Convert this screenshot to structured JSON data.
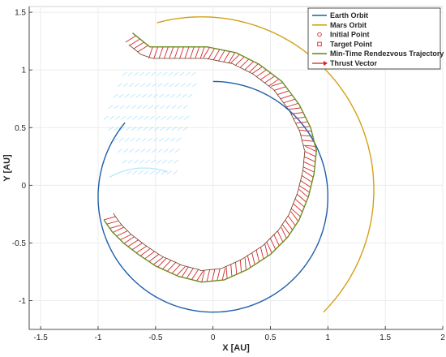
{
  "chart_data": {
    "type": "line",
    "xlabel": "X [AU]",
    "ylabel": "Y [AU]",
    "xlim": [
      -1.6,
      2.0
    ],
    "ylim": [
      -1.25,
      1.55
    ],
    "xticks": [
      -1.5,
      -1,
      -0.5,
      0,
      0.5,
      1,
      1.5,
      2
    ],
    "xtick_labels": [
      "-1.5",
      "-1",
      "-0.5",
      "0",
      "0.5",
      "1",
      "1.5",
      "2"
    ],
    "yticks": [
      -1,
      -0.5,
      0,
      0.5,
      1,
      1.5
    ],
    "ytick_labels": [
      "-1",
      "-0.5",
      "0",
      "0.5",
      "1",
      "1.5"
    ],
    "grid": true,
    "legend_position": "top-right",
    "colors": {
      "earth": "#1f5fa8",
      "mars": "#d4a017",
      "trajectory": "#6e8b1f",
      "thrust": "#d62728",
      "ghost": "#4fc3f7"
    },
    "series": [
      {
        "name": "Earth Orbit",
        "kind": "line",
        "color": "#1f5fa8",
        "orbit": {
          "radius": 1.0,
          "center_x": 0.0,
          "center_y": -0.1,
          "theta_start_deg": 140,
          "theta_end_deg": 450
        }
      },
      {
        "name": "Mars Orbit",
        "kind": "line",
        "color": "#d4a017",
        "orbit": {
          "radius": 1.5,
          "center_x": -0.1,
          "center_y": -0.04,
          "theta_start_deg": -45,
          "theta_end_deg": 105
        }
      },
      {
        "name": "Initial Point",
        "kind": "marker-circle",
        "color": "#d62728"
      },
      {
        "name": "Target Point",
        "kind": "marker-square",
        "color": "#d62728"
      },
      {
        "name": "Min-Time Rendezvous Trajectory",
        "kind": "line",
        "color": "#6e8b1f",
        "points": [
          [
            -0.95,
            -0.3
          ],
          [
            -0.88,
            -0.4
          ],
          [
            -0.78,
            -0.5
          ],
          [
            -0.65,
            -0.6
          ],
          [
            -0.5,
            -0.7
          ],
          [
            -0.3,
            -0.79
          ],
          [
            -0.1,
            -0.84
          ],
          [
            0.1,
            -0.82
          ],
          [
            0.3,
            -0.73
          ],
          [
            0.5,
            -0.6
          ],
          [
            0.65,
            -0.45
          ],
          [
            0.75,
            -0.3
          ],
          [
            0.83,
            -0.1
          ],
          [
            0.88,
            0.1
          ],
          [
            0.9,
            0.3
          ],
          [
            0.85,
            0.5
          ],
          [
            0.75,
            0.7
          ],
          [
            0.6,
            0.9
          ],
          [
            0.4,
            1.05
          ],
          [
            0.2,
            1.15
          ],
          [
            -0.05,
            1.2
          ],
          [
            -0.3,
            1.2
          ],
          [
            -0.55,
            1.2
          ],
          [
            -0.7,
            1.32
          ]
        ]
      },
      {
        "name": "Thrust Vector",
        "kind": "vector",
        "color": "#d62728"
      }
    ],
    "thrust_band": {
      "offset_au": 0.1,
      "spacing_au": 0.045
    }
  }
}
